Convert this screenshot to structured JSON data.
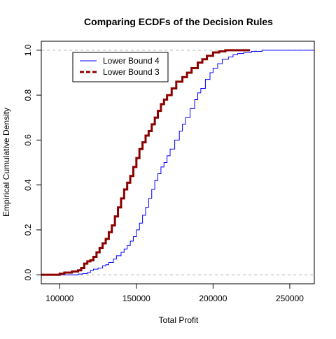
{
  "chart_data": {
    "type": "line",
    "title": "Comparing ECDFs of the Decision Rules",
    "xlabel": "Total Profit",
    "ylabel": "Empirical Cumulative Density",
    "xlim": [
      88000,
      266000
    ],
    "ylim": [
      -0.04,
      1.04
    ],
    "xticks": [
      100000,
      150000,
      200000,
      250000
    ],
    "xtick_labels": [
      "100000",
      "150000",
      "200000",
      "250000"
    ],
    "yticks": [
      0.0,
      0.2,
      0.4,
      0.6,
      0.8,
      1.0
    ],
    "ytick_labels": [
      "0.0",
      "0.2",
      "0.4",
      "0.6",
      "0.8",
      "1.0"
    ],
    "reference_lines": [
      0,
      1
    ],
    "legend_position": "top-left",
    "grid": false,
    "series": [
      {
        "name": "Lower Bound 4",
        "color": "#0000ff",
        "line_style": "step-thin",
        "points": [
          [
            88000,
            0.0
          ],
          [
            100000,
            0.0
          ],
          [
            112000,
            0.003
          ],
          [
            115000,
            0.005
          ],
          [
            118000,
            0.01
          ],
          [
            120000,
            0.02
          ],
          [
            122000,
            0.025
          ],
          [
            125000,
            0.03
          ],
          [
            128000,
            0.04
          ],
          [
            130000,
            0.045
          ],
          [
            132000,
            0.055
          ],
          [
            135000,
            0.07
          ],
          [
            137000,
            0.085
          ],
          [
            140000,
            0.1
          ],
          [
            142000,
            0.115
          ],
          [
            144000,
            0.13
          ],
          [
            146000,
            0.15
          ],
          [
            148000,
            0.17
          ],
          [
            150000,
            0.2
          ],
          [
            152000,
            0.23
          ],
          [
            154000,
            0.265
          ],
          [
            156000,
            0.3
          ],
          [
            158000,
            0.34
          ],
          [
            160000,
            0.38
          ],
          [
            162000,
            0.42
          ],
          [
            164000,
            0.45
          ],
          [
            166000,
            0.48
          ],
          [
            168000,
            0.5
          ],
          [
            170000,
            0.53
          ],
          [
            172000,
            0.56
          ],
          [
            175000,
            0.6
          ],
          [
            178000,
            0.64
          ],
          [
            180000,
            0.67
          ],
          [
            182000,
            0.7
          ],
          [
            185000,
            0.74
          ],
          [
            188000,
            0.78
          ],
          [
            190000,
            0.81
          ],
          [
            192000,
            0.83
          ],
          [
            195000,
            0.87
          ],
          [
            198000,
            0.9
          ],
          [
            200000,
            0.92
          ],
          [
            203000,
            0.94
          ],
          [
            206000,
            0.96
          ],
          [
            210000,
            0.97
          ],
          [
            213000,
            0.98
          ],
          [
            216000,
            0.985
          ],
          [
            220000,
            0.99
          ],
          [
            225000,
            0.995
          ],
          [
            232000,
            1.0
          ],
          [
            266000,
            1.0
          ]
        ]
      },
      {
        "name": "Lower Bound 3",
        "color": "#8b0000",
        "line_style": "step-thick",
        "points": [
          [
            88000,
            0.0
          ],
          [
            100000,
            0.005
          ],
          [
            103000,
            0.01
          ],
          [
            108000,
            0.015
          ],
          [
            112000,
            0.02
          ],
          [
            114000,
            0.03
          ],
          [
            116000,
            0.05
          ],
          [
            118000,
            0.06
          ],
          [
            120000,
            0.065
          ],
          [
            122000,
            0.08
          ],
          [
            124000,
            0.1
          ],
          [
            126000,
            0.12
          ],
          [
            128000,
            0.14
          ],
          [
            130000,
            0.16
          ],
          [
            132000,
            0.19
          ],
          [
            134000,
            0.22
          ],
          [
            136000,
            0.26
          ],
          [
            138000,
            0.3
          ],
          [
            140000,
            0.34
          ],
          [
            142000,
            0.38
          ],
          [
            144000,
            0.41
          ],
          [
            146000,
            0.44
          ],
          [
            148000,
            0.48
          ],
          [
            150000,
            0.52
          ],
          [
            152000,
            0.56
          ],
          [
            154000,
            0.59
          ],
          [
            156000,
            0.62
          ],
          [
            158000,
            0.64
          ],
          [
            160000,
            0.67
          ],
          [
            162000,
            0.7
          ],
          [
            164000,
            0.73
          ],
          [
            166000,
            0.76
          ],
          [
            168000,
            0.78
          ],
          [
            170000,
            0.8
          ],
          [
            173000,
            0.83
          ],
          [
            176000,
            0.86
          ],
          [
            180000,
            0.88
          ],
          [
            183000,
            0.9
          ],
          [
            186000,
            0.92
          ],
          [
            190000,
            0.945
          ],
          [
            193000,
            0.96
          ],
          [
            196000,
            0.975
          ],
          [
            200000,
            0.99
          ],
          [
            204000,
            0.995
          ],
          [
            208000,
            1.0
          ],
          [
            224000,
            1.0
          ]
        ]
      }
    ]
  }
}
